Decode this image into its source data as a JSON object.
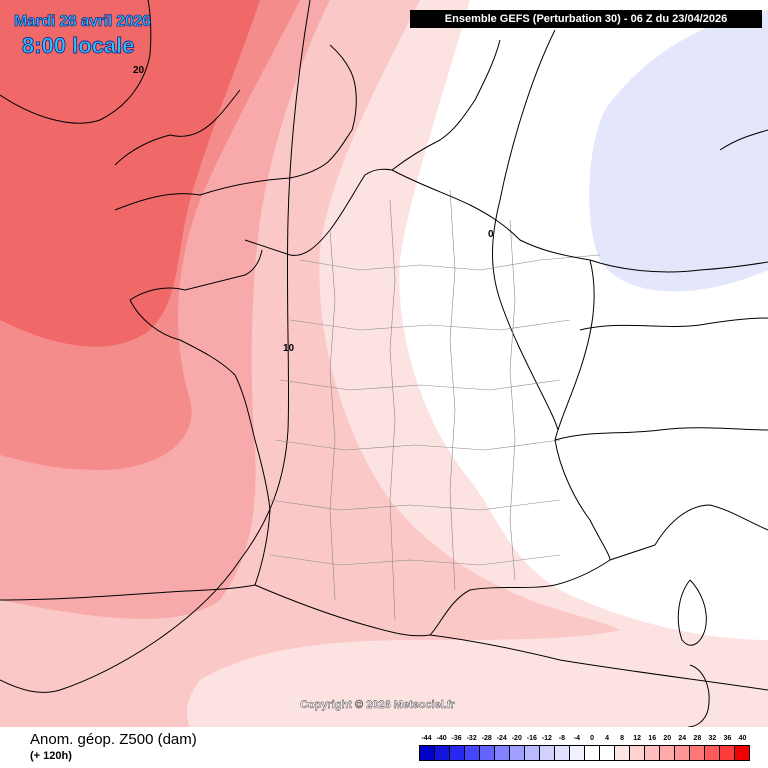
{
  "header": {
    "model": "Ensemble GEFS  (Perturbation 30)  -  06 Z du 23/04/2026"
  },
  "forecast": {
    "date": "Mardi 28 avril 2026",
    "time": "8:00 locale"
  },
  "contour_labels": [
    "20",
    "10",
    "0"
  ],
  "copyright": "Copyright © 2026 Meteociel.fr",
  "legend": {
    "variable": "Anom. géop. Z500 (dam)",
    "lead": "(+ 120h)",
    "scale": [
      "-44",
      "-40",
      "-36",
      "-32",
      "-28",
      "-24",
      "-20",
      "-16",
      "-12",
      "-8",
      "-4",
      "0",
      "4",
      "8",
      "12",
      "16",
      "20",
      "24",
      "28",
      "32",
      "36",
      "40"
    ],
    "colors": [
      "#0000c8",
      "#1414dc",
      "#2828f0",
      "#4646ff",
      "#6464ff",
      "#8282ff",
      "#a0a0ff",
      "#b9b9ff",
      "#d2d2ff",
      "#e1e1ff",
      "#f0f0ff",
      "#ffffff",
      "#ffffff",
      "#ffe6e6",
      "#ffd2d2",
      "#ffbebe",
      "#ffaaaa",
      "#ff9696",
      "#ff7878",
      "#ff5a5a",
      "#ff3c3c",
      "#f00000"
    ]
  },
  "colors": {
    "anomaly_20": "#f06868",
    "anomaly_16": "#f58c8c",
    "anomaly_12": "#f8aaaa",
    "anomaly_8": "#fbc8c8",
    "anomaly_4": "#fde2e2",
    "anomaly_neg4": "#e4e6fb",
    "border": "#000000"
  }
}
